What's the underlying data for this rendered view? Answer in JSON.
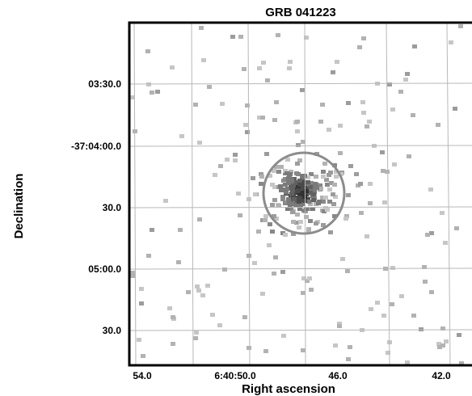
{
  "chart_data": {
    "type": "heatmap",
    "title": "GRB 041223",
    "xlabel": "Right ascension",
    "ylabel": "Declination",
    "x_ticks": [
      "54.0",
      "6:40:50.0",
      "46.0",
      "42.0"
    ],
    "y_ticks": [
      "03:30.0",
      "-37:04:00.0",
      "30.0",
      "05:00.0",
      "30.0"
    ],
    "grid": true,
    "source_circle": true,
    "colors": {
      "grid": "#b8b8b8",
      "frame": "#000000",
      "circle": "#8c8c8c",
      "pixel_dark": "#222222",
      "pixel_light": "#c6c6c6"
    }
  }
}
